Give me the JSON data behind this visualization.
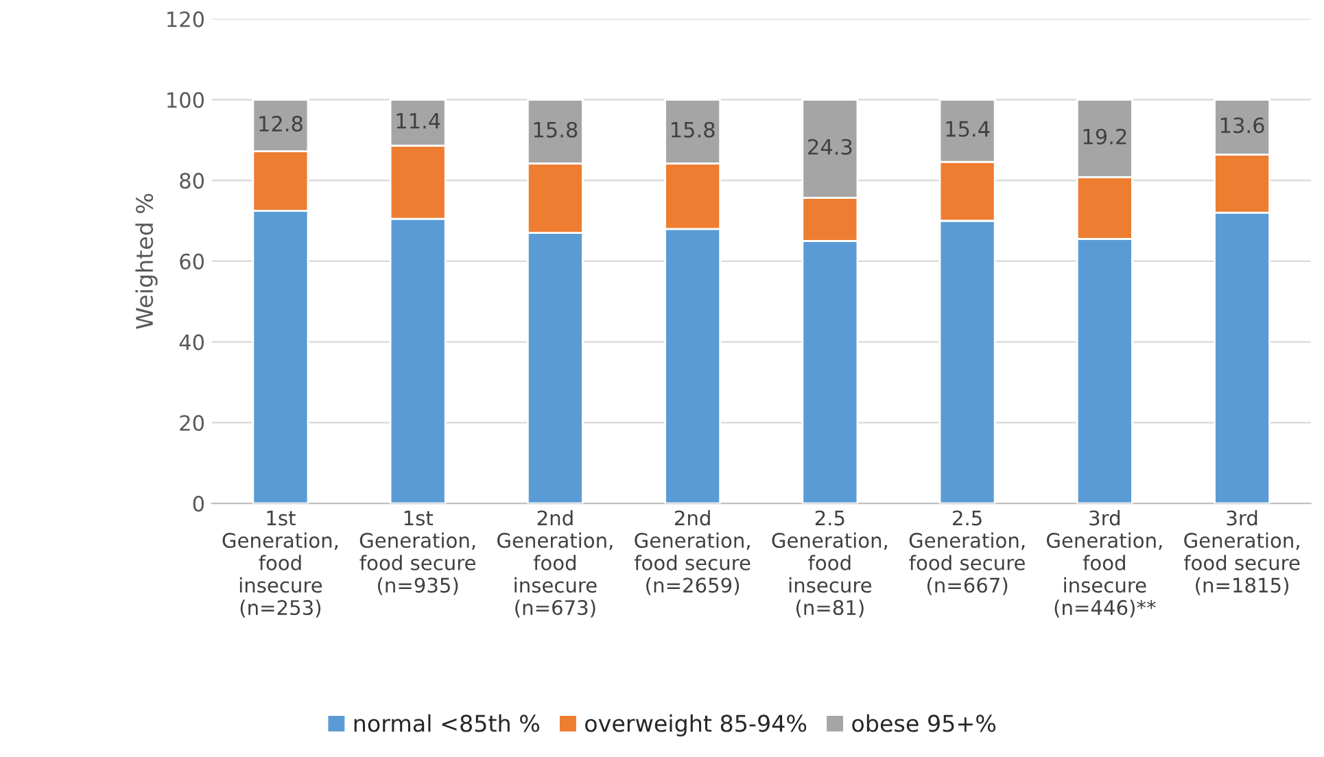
{
  "chart_data": {
    "type": "bar",
    "stacked": true,
    "ylabel": "Weighted %",
    "categories": [
      "1st\nGeneration,\nfood\ninsecure\n(n=253)",
      "1st\nGeneration,\nfood secure\n(n=935)",
      "2nd\nGeneration,\nfood\ninsecure\n(n=673)",
      "2nd\nGeneration,\nfood secure\n(n=2659)",
      "2.5\nGeneration,\nfood\ninsecure\n(n=81)",
      "2.5\nGeneration,\nfood secure\n(n=667)",
      "3rd\nGeneration,\nfood\ninsecure\n(n=446)**",
      "3rd\nGeneration,\nfood secure\n(n=1815)"
    ],
    "series": [
      {
        "name": "normal <85th %",
        "color": "#5b9bd5",
        "values": [
          72.5,
          70.5,
          67,
          68,
          65,
          70,
          65.5,
          72
        ]
      },
      {
        "name": "overweight 85-94%",
        "color": "#ed7d31",
        "values": [
          14.7,
          18.1,
          17.2,
          16.2,
          10.7,
          14.6,
          15.3,
          14.4
        ]
      },
      {
        "name": "obese 95+%",
        "color": "#a5a5a5",
        "values": [
          12.8,
          11.4,
          15.8,
          15.8,
          24.3,
          15.4,
          19.2,
          13.6
        ],
        "value_labels": [
          "12.8",
          "11.4",
          "15.8",
          "15.8",
          "24.3",
          "15.4",
          "19.2",
          "13.6"
        ]
      }
    ],
    "ylim": [
      0,
      120
    ],
    "yticks": [
      0,
      20,
      40,
      60,
      80,
      100,
      120
    ],
    "grid": "y",
    "legend": "bottom"
  }
}
